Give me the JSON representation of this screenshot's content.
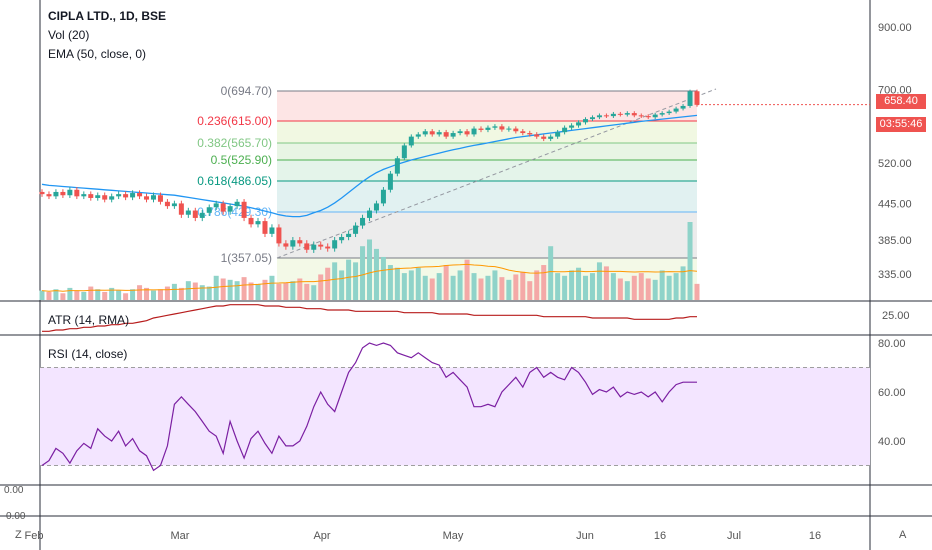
{
  "legend": {
    "title": "CIPLA LTD., 1D, BSE",
    "vol": "Vol (20)",
    "ema": "EMA (50, close, 0)"
  },
  "panes": {
    "atr_label": "ATR (14, RMA)",
    "rsi_label": "RSI (14, close)"
  },
  "price_badges": {
    "last_price": "658.40",
    "countdown": "03:55:46"
  },
  "corners": {
    "left": "Z",
    "right": "A"
  },
  "colors": {
    "up": "#26a69a",
    "down": "#ef5350",
    "ema": "#2196f3",
    "atr": "#b71c1c",
    "rsi": "#7b1fa2",
    "rsi_band": "#f3e5ff",
    "vol_ma": "#ff9800",
    "axis_text": "#555555"
  },
  "chart_data": [
    {
      "type": "candlestick",
      "title": "CIPLA LTD., 1D, BSE",
      "y_axis_ticks": [
        "900.00",
        "700.00",
        "520.00",
        "445.00",
        "385.00",
        "335.00"
      ],
      "x_axis_ticks": [
        "Feb",
        "Mar",
        "Apr",
        "May",
        "Jun",
        "16",
        "Jul",
        "16"
      ],
      "fibonacci_levels": [
        {
          "label": "0(694.70)",
          "value": 694.7,
          "color": "#787b86"
        },
        {
          "label": "0.236(615.00)",
          "value": 615.0,
          "color": "#f23645"
        },
        {
          "label": "0.382(565.70)",
          "value": 565.7,
          "color": "#81c784"
        },
        {
          "label": "0.5(525.90)",
          "value": 525.9,
          "color": "#4caf50"
        },
        {
          "label": "0.618(486.05)",
          "value": 486.05,
          "color": "#089981"
        },
        {
          "label": "0.786(429.30)",
          "value": 429.3,
          "color": "#64b5f6"
        },
        {
          "label": "1(357.05)",
          "value": 357.05,
          "color": "#787b86"
        }
      ],
      "close": [
        462,
        458,
        466,
        460,
        470,
        458,
        462,
        455,
        460,
        452,
        458,
        462,
        456,
        464,
        458,
        452,
        460,
        448,
        440,
        445,
        425,
        432,
        420,
        428,
        438,
        445,
        430,
        440,
        448,
        420,
        410,
        415,
        395,
        405,
        380,
        375,
        385,
        380,
        370,
        378,
        375,
        372,
        385,
        390,
        395,
        408,
        420,
        432,
        445,
        470,
        500,
        530,
        560,
        580,
        585,
        592,
        585,
        590,
        580,
        588,
        592,
        585,
        598,
        595,
        600,
        603,
        596,
        598,
        592,
        588,
        585,
        580,
        575,
        580,
        590,
        600,
        605,
        612,
        620,
        625,
        630,
        628,
        634,
        632,
        636,
        630,
        628,
        625,
        632,
        636,
        640,
        648,
        655,
        694,
        658
      ],
      "ema50": [
        480,
        478,
        477,
        476,
        475,
        474,
        473,
        472,
        471,
        470,
        469,
        468,
        467,
        466,
        465,
        464,
        463,
        462,
        461,
        460,
        458,
        456,
        454,
        452,
        450,
        448,
        446,
        444,
        442,
        440,
        437,
        434,
        431,
        428,
        425,
        423,
        422,
        422,
        424,
        428,
        432,
        438,
        446,
        455,
        465,
        475,
        485,
        494,
        502,
        508,
        513,
        518,
        522,
        526,
        530,
        534,
        538,
        542,
        546,
        550,
        553,
        557,
        560,
        563,
        566,
        569,
        572,
        575,
        578,
        580,
        582,
        584,
        586,
        588,
        590,
        592,
        594,
        596,
        598,
        600,
        602,
        604,
        606,
        608,
        610,
        612,
        614,
        616,
        618,
        620,
        622,
        624,
        626,
        628,
        630
      ],
      "volume": [
        7,
        6,
        8,
        5,
        9,
        7,
        6,
        10,
        8,
        6,
        9,
        7,
        5,
        8,
        11,
        9,
        7,
        8,
        10,
        12,
        9,
        14,
        13,
        11,
        10,
        18,
        16,
        15,
        14,
        17,
        13,
        12,
        15,
        18,
        12,
        13,
        14,
        16,
        12,
        11,
        19,
        24,
        28,
        22,
        30,
        28,
        40,
        45,
        38,
        32,
        26,
        24,
        20,
        22,
        24,
        18,
        16,
        20,
        26,
        18,
        22,
        30,
        20,
        16,
        18,
        22,
        17,
        15,
        19,
        21,
        14,
        22,
        26,
        40,
        20,
        18,
        22,
        24,
        18,
        20,
        28,
        25,
        20,
        16,
        14,
        18,
        20,
        16,
        15,
        22,
        18,
        20,
        25,
        58,
        12
      ],
      "atr": [
        30,
        30,
        31,
        31,
        32,
        32,
        33,
        33,
        34,
        34,
        35,
        35,
        36,
        36,
        37,
        38,
        40,
        41,
        42,
        43,
        44,
        45,
        46,
        47,
        48,
        49,
        49,
        50,
        50,
        50,
        50,
        50,
        49,
        49,
        49,
        48,
        48,
        48,
        47,
        47,
        47,
        46,
        46,
        46,
        46,
        45,
        45,
        45,
        45,
        45,
        45,
        45,
        44,
        44,
        44,
        44,
        44,
        43,
        43,
        43,
        43,
        43,
        42,
        42,
        42,
        42,
        42,
        42,
        42,
        42,
        42,
        42,
        41,
        41,
        41,
        41,
        41,
        41,
        41,
        40,
        40,
        40,
        40,
        40,
        40,
        39,
        39,
        39,
        39,
        39,
        39,
        40,
        40,
        41,
        41
      ],
      "atr_y_ticks": [
        "25.00"
      ],
      "rsi": [
        30,
        32,
        37,
        35,
        31,
        36,
        39,
        37,
        45,
        42,
        40,
        44,
        38,
        41,
        36,
        34,
        28,
        30,
        38,
        55,
        58,
        55,
        52,
        48,
        44,
        42,
        35,
        48,
        40,
        33,
        41,
        44,
        39,
        35,
        42,
        38,
        38,
        40,
        46,
        54,
        60,
        55,
        52,
        60,
        68,
        72,
        78,
        80,
        79,
        80,
        79,
        76,
        75,
        74,
        76,
        74,
        72,
        71,
        66,
        68,
        65,
        62,
        54,
        54,
        55,
        54,
        60,
        63,
        66,
        62,
        68,
        70,
        66,
        68,
        66,
        65,
        70,
        68,
        64,
        59,
        61,
        60,
        62,
        58,
        60,
        59,
        60,
        58,
        60,
        56,
        60,
        63,
        64,
        64,
        64
      ],
      "rsi_y_ticks": [
        "80.00",
        "60.00",
        "40.00"
      ],
      "rsi_band": [
        30,
        70
      ],
      "bottom_pane_y_ticks": [
        "0.00",
        "0.00"
      ]
    }
  ]
}
